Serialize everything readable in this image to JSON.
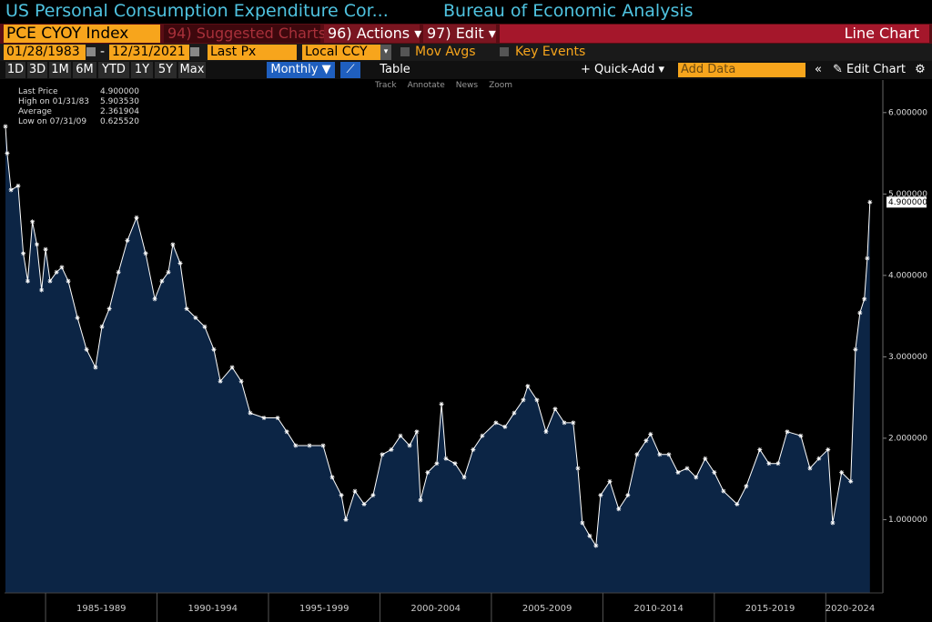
{
  "header": {
    "title": "US Personal Consumption Expenditure Cor...",
    "source": "Bureau of Economic Analysis"
  },
  "toolbar": {
    "ticker": "PCE CYOY Index",
    "suggested": "94) Suggested Charts",
    "actions": "96) Actions",
    "edit": "97) Edit",
    "chart_kind": "Line Chart",
    "start_date": "01/28/1983",
    "end_date": "12/31/2021",
    "field": "Last Px",
    "currency": "Local CCY",
    "mov_avgs": "Mov Avgs",
    "key_events": "Key Events",
    "periods": [
      "1D",
      "3D",
      "1M",
      "6M",
      "YTD",
      "1Y",
      "5Y",
      "Max"
    ],
    "frequency": "Monthly",
    "table": "Table",
    "quick_add": "Quick-Add",
    "add_data": "Add Data",
    "edit_chart": "Edit Chart",
    "chart_tools": [
      "Track",
      "Annotate",
      "News",
      "Zoom"
    ]
  },
  "chart_data": {
    "type": "line",
    "legend": [
      {
        "label": "Last Price",
        "value": "4.900000"
      },
      {
        "label": "High on 01/31/83",
        "value": "5.903530"
      },
      {
        "label": "Average",
        "value": "2.361904"
      },
      {
        "label": "Low on 07/31/09",
        "value": "0.625520"
      }
    ],
    "last_value_label": "4.900000",
    "series": [
      {
        "name": "Last Price",
        "color": "#ffffff",
        "fill": "#0c2545",
        "x": [
          1983.2,
          1983.28,
          1983.45,
          1983.77,
          1984.0,
          1984.2,
          1984.41,
          1984.61,
          1984.82,
          1985.0,
          1985.2,
          1985.49,
          1985.73,
          1986.02,
          1986.43,
          1986.84,
          1987.24,
          1987.53,
          1987.86,
          1988.27,
          1988.67,
          1989.08,
          1989.49,
          1989.9,
          1990.22,
          1990.51,
          1990.71,
          1991.04,
          1991.33,
          1991.73,
          1992.14,
          1992.55,
          1992.84,
          1993.37,
          1993.78,
          1994.18,
          1994.8,
          1995.41,
          1995.82,
          1996.22,
          1996.84,
          1997.45,
          1997.86,
          1998.27,
          1998.47,
          1998.88,
          1999.29,
          1999.69,
          2000.1,
          2000.51,
          2000.92,
          2001.33,
          2001.65,
          2001.82,
          2002.14,
          2002.55,
          2002.76,
          2002.96,
          2003.37,
          2003.78,
          2004.18,
          2004.59,
          2005.2,
          2005.61,
          2006.02,
          2006.43,
          2006.63,
          2007.04,
          2007.45,
          2007.86,
          2008.27,
          2008.67,
          2008.88,
          2009.08,
          2009.41,
          2009.69,
          2009.9,
          2010.31,
          2010.71,
          2011.12,
          2011.53,
          2011.94,
          2012.14,
          2012.55,
          2012.96,
          2013.37,
          2013.78,
          2014.18,
          2014.59,
          2015.0,
          2015.41,
          2016.02,
          2016.43,
          2017.04,
          2017.45,
          2017.86,
          2018.27,
          2018.88,
          2019.29,
          2019.69,
          2020.1,
          2020.31,
          2020.71,
          2021.12,
          2021.33,
          2021.53,
          2021.73,
          2021.86,
          2021.98
        ],
        "values": [
          5.83,
          5.5,
          5.05,
          5.1,
          4.27,
          3.93,
          4.66,
          4.38,
          3.82,
          4.32,
          3.93,
          4.04,
          4.1,
          3.93,
          3.48,
          3.09,
          2.87,
          3.37,
          3.59,
          4.04,
          4.43,
          4.71,
          4.27,
          3.71,
          3.93,
          4.04,
          4.38,
          4.15,
          3.59,
          3.48,
          3.37,
          3.09,
          2.7,
          2.87,
          2.7,
          2.31,
          2.25,
          2.25,
          2.08,
          1.91,
          1.91,
          1.91,
          1.52,
          1.3,
          1.0,
          1.35,
          1.19,
          1.3,
          1.8,
          1.86,
          2.03,
          1.91,
          2.08,
          1.24,
          1.58,
          1.69,
          2.42,
          1.75,
          1.69,
          1.52,
          1.86,
          2.03,
          2.19,
          2.14,
          2.31,
          2.47,
          2.64,
          2.47,
          2.08,
          2.36,
          2.19,
          2.19,
          1.63,
          0.96,
          0.8,
          0.68,
          1.3,
          1.47,
          1.13,
          1.3,
          1.8,
          1.97,
          2.05,
          1.8,
          1.8,
          1.58,
          1.63,
          1.52,
          1.75,
          1.58,
          1.35,
          1.19,
          1.41,
          1.86,
          1.69,
          1.69,
          2.08,
          2.03,
          1.63,
          1.75,
          1.86,
          0.96,
          1.58,
          1.47,
          3.09,
          3.54,
          3.71,
          4.21,
          4.9
        ]
      }
    ],
    "xlim": [
      1983.16,
      2022.56
    ],
    "xticks": [
      {
        "value": 1987.5,
        "label": "1985-1989"
      },
      {
        "value": 1992.5,
        "label": "1990-1994"
      },
      {
        "value": 1997.5,
        "label": "1995-1999"
      },
      {
        "value": 2002.5,
        "label": "2000-2004"
      },
      {
        "value": 2007.5,
        "label": "2005-2009"
      },
      {
        "value": 2012.5,
        "label": "2010-2014"
      },
      {
        "value": 2017.5,
        "label": "2015-2019"
      },
      {
        "value": 2022.5,
        "label": "2020-2024"
      }
    ],
    "ylim": [
      0.1,
      6.4
    ],
    "yticks": [
      {
        "value": 1,
        "label": "1.000000"
      },
      {
        "value": 2,
        "label": "2.000000"
      },
      {
        "value": 3,
        "label": "3.000000"
      },
      {
        "value": 4,
        "label": "4.000000"
      },
      {
        "value": 5,
        "label": "5.000000"
      },
      {
        "value": 6,
        "label": "6.000000"
      }
    ]
  }
}
